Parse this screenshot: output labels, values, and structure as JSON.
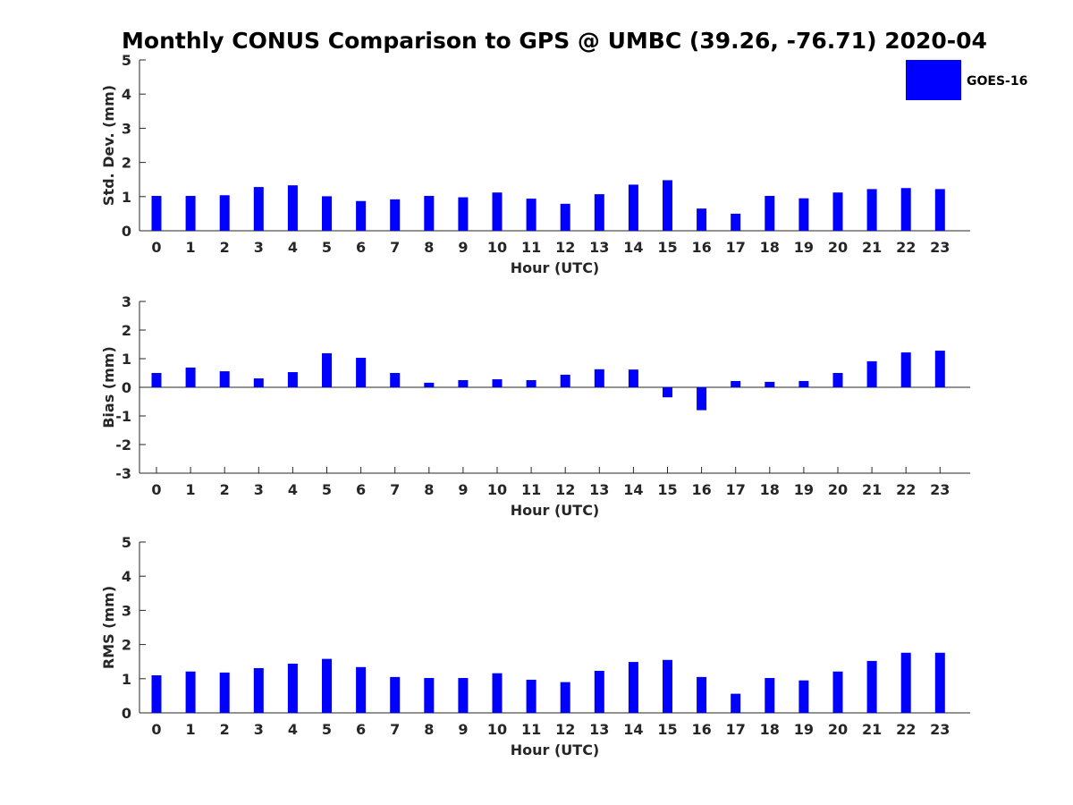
{
  "title": "Monthly CONUS Comparison to GPS @ UMBC (39.26, -76.71) 2020-04",
  "legend": {
    "label": "GOES-16",
    "color": "#0000ff",
    "placement": "top-right"
  },
  "chart_data": [
    {
      "type": "bar",
      "ylabel": "Std. Dev. (mm)",
      "xlabel": "Hour (UTC)",
      "ylim": [
        0,
        5
      ],
      "yticks": [
        0,
        1,
        2,
        3,
        4,
        5
      ],
      "categories": [
        "0",
        "1",
        "2",
        "3",
        "4",
        "5",
        "6",
        "7",
        "8",
        "9",
        "10",
        "11",
        "12",
        "13",
        "14",
        "15",
        "16",
        "17",
        "18",
        "19",
        "20",
        "21",
        "22",
        "23"
      ],
      "series": [
        {
          "name": "GOES-16",
          "values": [
            1.02,
            1.02,
            1.04,
            1.28,
            1.33,
            1.01,
            0.87,
            0.92,
            1.02,
            0.98,
            1.12,
            0.94,
            0.79,
            1.07,
            1.35,
            1.48,
            0.65,
            0.5,
            1.02,
            0.95,
            1.12,
            1.22,
            1.25,
            1.22
          ]
        }
      ]
    },
    {
      "type": "bar",
      "ylabel": "Bias (mm)",
      "xlabel": "Hour (UTC)",
      "ylim": [
        -3,
        3
      ],
      "yticks": [
        -3,
        -2,
        -1,
        0,
        1,
        2,
        3
      ],
      "zero_line": true,
      "categories": [
        "0",
        "1",
        "2",
        "3",
        "4",
        "5",
        "6",
        "7",
        "8",
        "9",
        "10",
        "11",
        "12",
        "13",
        "14",
        "15",
        "16",
        "17",
        "18",
        "19",
        "20",
        "21",
        "22",
        "23"
      ],
      "series": [
        {
          "name": "GOES-16",
          "values": [
            0.5,
            0.69,
            0.56,
            0.31,
            0.53,
            1.19,
            1.03,
            0.5,
            0.16,
            0.25,
            0.28,
            0.25,
            0.44,
            0.63,
            0.62,
            -0.35,
            -0.8,
            0.22,
            0.19,
            0.22,
            0.5,
            0.91,
            1.22,
            1.28
          ]
        }
      ]
    },
    {
      "type": "bar",
      "ylabel": "RMS (mm)",
      "xlabel": "Hour (UTC)",
      "ylim": [
        0,
        5
      ],
      "yticks": [
        0,
        1,
        2,
        3,
        4,
        5
      ],
      "categories": [
        "0",
        "1",
        "2",
        "3",
        "4",
        "5",
        "6",
        "7",
        "8",
        "9",
        "10",
        "11",
        "12",
        "13",
        "14",
        "15",
        "16",
        "17",
        "18",
        "19",
        "20",
        "21",
        "22",
        "23"
      ],
      "series": [
        {
          "name": "GOES-16",
          "values": [
            1.1,
            1.21,
            1.18,
            1.31,
            1.44,
            1.58,
            1.34,
            1.05,
            1.02,
            1.02,
            1.16,
            0.97,
            0.9,
            1.23,
            1.49,
            1.55,
            1.05,
            0.56,
            1.02,
            0.95,
            1.21,
            1.52,
            1.76,
            1.76
          ]
        }
      ]
    }
  ]
}
